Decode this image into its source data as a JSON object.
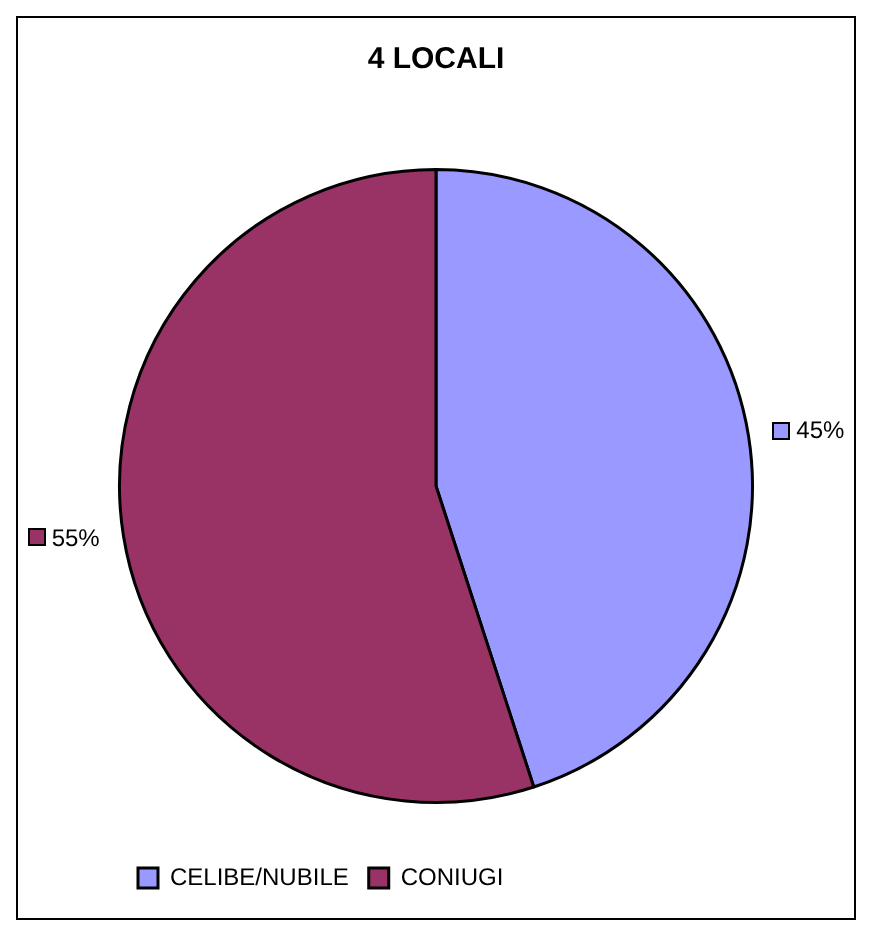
{
  "chart_data": {
    "type": "pie",
    "title": "4 LOCALI",
    "categories": [
      "CELIBE/NUBILE",
      "CONIUGI"
    ],
    "values": [
      45,
      55
    ],
    "colors": [
      "#9999ff",
      "#993366"
    ],
    "value_labels": [
      "45%",
      "55%"
    ],
    "legend": "bottom left"
  }
}
